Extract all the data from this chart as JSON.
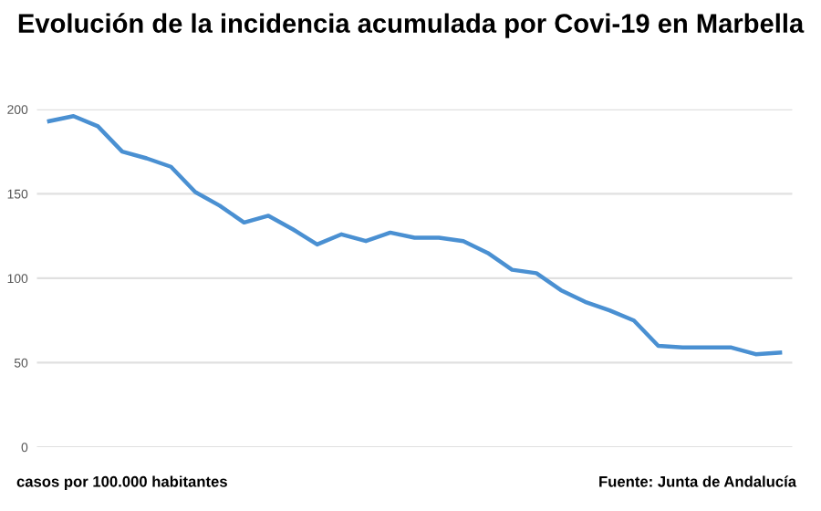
{
  "chart_data": {
    "type": "line",
    "title": "Evolución de la incidencia acumulada por Covi-19 en Marbella",
    "categories": [
      null,
      null,
      null,
      null,
      null,
      null,
      null,
      null,
      null,
      null,
      null,
      null,
      null,
      null,
      null,
      null,
      null,
      null,
      null,
      null,
      null,
      null,
      null,
      null,
      null,
      null,
      null,
      null,
      null,
      null,
      null
    ],
    "series": [
      {
        "color": "#4a90d2",
        "values": [
          193,
          196,
          190,
          175,
          171,
          166,
          151,
          143,
          133,
          137,
          129,
          120,
          126,
          122,
          127,
          124,
          124,
          122,
          115,
          105,
          103,
          93,
          86,
          81,
          75,
          60,
          59,
          59,
          59,
          55,
          56
        ]
      }
    ],
    "ylim": [
      0,
      200
    ],
    "yticks": [
      0,
      50,
      100,
      150,
      200
    ],
    "grid": "y",
    "marker": "none",
    "annotations": [
      "casos por 100.000 habitantes",
      "Fuente: Junta de Andalucía"
    ]
  }
}
